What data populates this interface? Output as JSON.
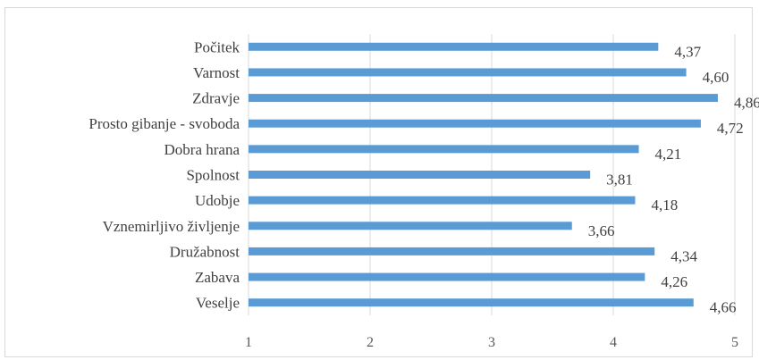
{
  "chart_data": {
    "type": "bar",
    "orientation": "horizontal",
    "categories": [
      "Počitek",
      "Varnost",
      "Zdravje",
      "Prosto gibanje - svoboda",
      "Dobra hrana",
      "Spolnost",
      "Udobje",
      "Vznemirljivo življenje",
      "Družabnost",
      "Zabava",
      "Veselje"
    ],
    "values": [
      4.37,
      4.6,
      4.86,
      4.72,
      4.21,
      3.81,
      4.18,
      3.66,
      4.34,
      4.26,
      4.66
    ],
    "value_labels": [
      "4,37",
      "4,60",
      "4,86",
      "4,72",
      "4,21",
      "3,81",
      "4,18",
      "3,66",
      "4,34",
      "4,26",
      "4,66"
    ],
    "x_ticks": [
      1,
      2,
      3,
      4,
      5
    ],
    "x_tick_labels": [
      "1",
      "2",
      "3",
      "4",
      "5"
    ],
    "xlim": [
      1,
      5
    ],
    "grid": "vertical",
    "bar_color": "#5b9bd5",
    "grid_color": "#d9d9d9"
  }
}
